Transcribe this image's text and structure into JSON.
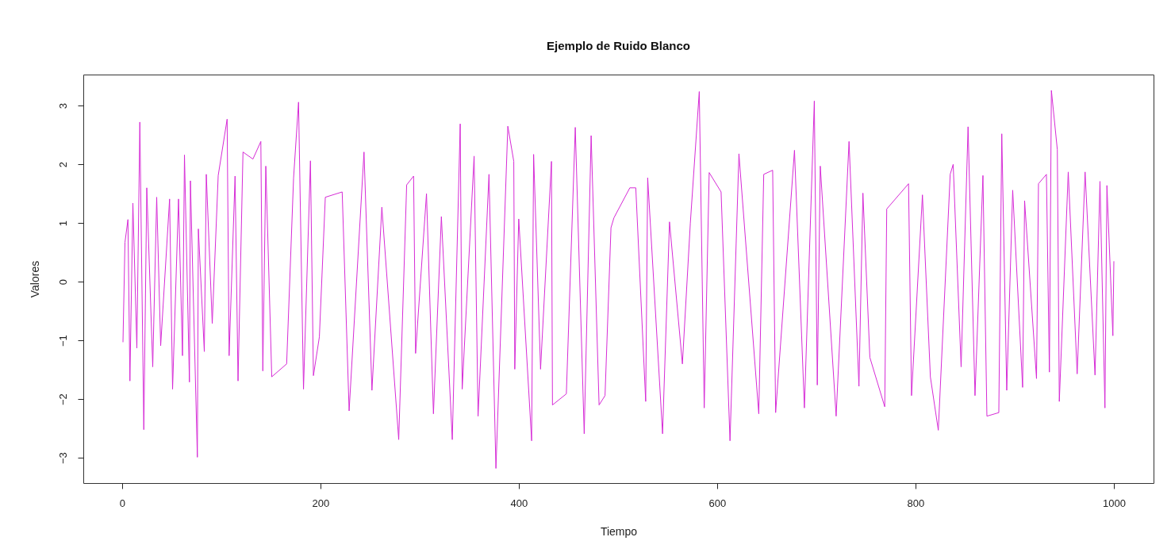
{
  "chart_data": {
    "type": "line",
    "title": "Ejemplo de Ruido Blanco",
    "xlabel": "Tiempo",
    "ylabel": "Valores",
    "xlim": [
      -39,
      1040
    ],
    "xticks": [
      0,
      200,
      400,
      600,
      800,
      1000
    ],
    "ylim": [
      -3.43,
      3.53
    ],
    "yticks": [
      -3,
      -2,
      -1,
      0,
      1,
      2,
      3
    ],
    "grid": false,
    "marker": "none",
    "line_style": "solid",
    "series": [
      {
        "color": "#d62bd6",
        "x": [
          1,
          3,
          6,
          8,
          11,
          15,
          18,
          22,
          25,
          31,
          35,
          39,
          48,
          51,
          57,
          61,
          63,
          68,
          69,
          76,
          77,
          83,
          85,
          91,
          97,
          106,
          108,
          114,
          117,
          122,
          132,
          140,
          142,
          145,
          151,
          166,
          173,
          178,
          183,
          190,
          193,
          199,
          205,
          222,
          229,
          244,
          252,
          262,
          279,
          287,
          294,
          296,
          307,
          314,
          322,
          333,
          341,
          343,
          355,
          359,
          370,
          377,
          389,
          395,
          396,
          400,
          413,
          415,
          422,
          433,
          434,
          448,
          457,
          466,
          473,
          481,
          487,
          493,
          496,
          512,
          518,
          528,
          530,
          545,
          552,
          565,
          573,
          582,
          587,
          592,
          604,
          613,
          622,
          642,
          647,
          656,
          659,
          678,
          688,
          698,
          701,
          704,
          720,
          733,
          743,
          747,
          754,
          769,
          771,
          793,
          796,
          807,
          815,
          823,
          835,
          838,
          846,
          853,
          860,
          868,
          872,
          884,
          887,
          892,
          898,
          908,
          910,
          922,
          924,
          932,
          935,
          937,
          943,
          945,
          954,
          963,
          971,
          981,
          986,
          991,
          993,
          999,
          1000
        ],
        "values": [
          -1.03,
          0.67,
          1.06,
          -1.69,
          1.34,
          -1.13,
          2.72,
          -2.52,
          1.6,
          -1.45,
          1.44,
          -1.09,
          1.41,
          -1.83,
          1.41,
          -1.26,
          2.16,
          -1.71,
          1.72,
          -2.99,
          0.9,
          -1.19,
          1.83,
          -0.71,
          1.81,
          2.77,
          -1.26,
          1.8,
          -1.69,
          2.21,
          2.09,
          2.39,
          -1.52,
          1.97,
          -1.62,
          -1.4,
          1.77,
          3.06,
          -1.83,
          2.06,
          -1.6,
          -0.94,
          1.44,
          1.53,
          -2.2,
          2.21,
          -1.85,
          1.27,
          -2.69,
          1.65,
          1.8,
          -1.22,
          1.5,
          -2.25,
          1.11,
          -2.69,
          2.69,
          -1.83,
          2.14,
          -2.29,
          1.83,
          -3.18,
          2.65,
          2.05,
          -1.49,
          1.07,
          -2.71,
          2.17,
          -1.49,
          2.05,
          -2.1,
          -1.91,
          2.63,
          -2.59,
          2.49,
          -2.1,
          -1.94,
          0.92,
          1.09,
          1.6,
          1.6,
          -2.04,
          1.77,
          -2.59,
          1.02,
          -1.4,
          1.0,
          3.24,
          -2.15,
          1.86,
          1.53,
          -2.71,
          2.18,
          -2.25,
          1.83,
          1.9,
          -2.23,
          2.24,
          -2.15,
          3.08,
          -1.76,
          1.97,
          -2.29,
          2.39,
          -1.78,
          1.51,
          -1.29,
          -2.13,
          1.24,
          1.67,
          -1.94,
          1.48,
          -1.62,
          -2.53,
          1.83,
          2.0,
          -1.45,
          2.64,
          -1.94,
          1.81,
          -2.29,
          -2.23,
          2.52,
          -1.85,
          1.56,
          -1.8,
          1.38,
          -1.65,
          1.67,
          1.83,
          -1.54,
          3.26,
          2.25,
          -2.04,
          1.87,
          -1.57,
          1.87,
          -1.59,
          1.71,
          -2.15,
          1.64,
          -0.92,
          0.35
        ]
      }
    ]
  }
}
